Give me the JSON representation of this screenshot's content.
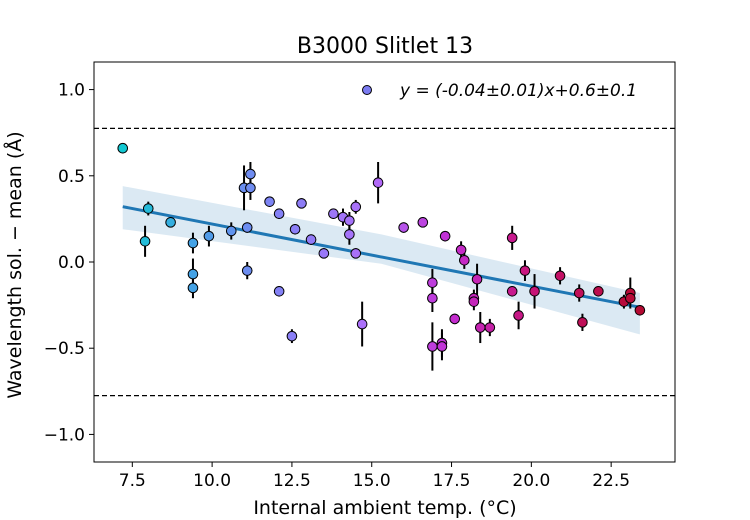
{
  "chart_data": {
    "type": "scatter",
    "title": "B3000 Slitlet 13",
    "xlabel": "Internal ambient temp. (°C)",
    "ylabel": "Wavelength sol. − mean (Å)",
    "xlim": [
      6.3,
      24.5
    ],
    "ylim": [
      -1.16,
      1.16
    ],
    "xticks": [
      7.5,
      10.0,
      12.5,
      15.0,
      17.5,
      20.0,
      22.5
    ],
    "xtick_labels": [
      "7.5",
      "10.0",
      "12.5",
      "15.0",
      "17.5",
      "20.0",
      "22.5"
    ],
    "yticks": [
      -1.0,
      -0.5,
      0.0,
      0.5,
      1.0
    ],
    "ytick_labels": [
      "−1.0",
      "−0.5",
      "0.0",
      "0.5",
      "1.0"
    ],
    "legend": {
      "label": "y = (-0.04±0.01)x+0.6±0.1",
      "position": "top-right",
      "marker_color": "#7b7bf0"
    },
    "reference_lines": [
      0.775,
      -0.775
    ],
    "fit": {
      "slope": -0.036,
      "intercept": 0.58,
      "x_range": [
        7.2,
        23.4
      ],
      "band": [
        [
          7.2,
          0.19,
          0.44
        ],
        [
          15.3,
          -0.01,
          0.16
        ],
        [
          23.4,
          -0.42,
          -0.18
        ]
      ],
      "color": "#1f77b4"
    },
    "points": [
      {
        "x": 7.2,
        "y": 0.66,
        "err": 0.03
      },
      {
        "x": 7.9,
        "y": 0.12,
        "err": 0.09
      },
      {
        "x": 8.0,
        "y": 0.31,
        "err": 0.04
      },
      {
        "x": 8.7,
        "y": 0.23,
        "err": 0.03
      },
      {
        "x": 9.4,
        "y": 0.11,
        "err": 0.06
      },
      {
        "x": 9.4,
        "y": -0.07,
        "err": 0.09
      },
      {
        "x": 9.4,
        "y": -0.15,
        "err": 0.06
      },
      {
        "x": 9.9,
        "y": 0.15,
        "err": 0.06
      },
      {
        "x": 10.6,
        "y": 0.18,
        "err": 0.05
      },
      {
        "x": 11.0,
        "y": 0.43,
        "err": 0.13
      },
      {
        "x": 11.1,
        "y": 0.2,
        "err": 0.03
      },
      {
        "x": 11.1,
        "y": -0.05,
        "err": 0.05
      },
      {
        "x": 11.2,
        "y": 0.51,
        "err": 0.07
      },
      {
        "x": 11.2,
        "y": 0.43,
        "err": 0.07
      },
      {
        "x": 11.8,
        "y": 0.35,
        "err": 0.03
      },
      {
        "x": 12.1,
        "y": 0.28,
        "err": 0.03
      },
      {
        "x": 12.1,
        "y": -0.17,
        "err": 0.03
      },
      {
        "x": 12.5,
        "y": -0.43,
        "err": 0.04
      },
      {
        "x": 12.6,
        "y": 0.19,
        "err": 0.03
      },
      {
        "x": 12.8,
        "y": 0.34,
        "err": 0.03
      },
      {
        "x": 13.1,
        "y": 0.13,
        "err": 0.03
      },
      {
        "x": 13.5,
        "y": 0.05,
        "err": 0.03
      },
      {
        "x": 13.8,
        "y": 0.28,
        "err": 0.03
      },
      {
        "x": 14.1,
        "y": 0.26,
        "err": 0.05
      },
      {
        "x": 14.3,
        "y": 0.24,
        "err": 0.05
      },
      {
        "x": 14.3,
        "y": 0.16,
        "err": 0.06
      },
      {
        "x": 14.5,
        "y": 0.32,
        "err": 0.04
      },
      {
        "x": 14.5,
        "y": 0.05,
        "err": 0.03
      },
      {
        "x": 14.7,
        "y": -0.36,
        "err": 0.13
      },
      {
        "x": 15.2,
        "y": 0.46,
        "err": 0.12
      },
      {
        "x": 16.0,
        "y": 0.2,
        "err": 0.03
      },
      {
        "x": 16.6,
        "y": 0.23,
        "err": 0.03
      },
      {
        "x": 16.9,
        "y": -0.12,
        "err": 0.08
      },
      {
        "x": 16.9,
        "y": -0.21,
        "err": 0.08
      },
      {
        "x": 16.9,
        "y": -0.49,
        "err": 0.14
      },
      {
        "x": 17.2,
        "y": -0.47,
        "err": 0.08
      },
      {
        "x": 17.2,
        "y": -0.49,
        "err": 0.08
      },
      {
        "x": 17.3,
        "y": 0.15,
        "err": 0.03
      },
      {
        "x": 17.6,
        "y": -0.33,
        "err": 0.03
      },
      {
        "x": 17.8,
        "y": 0.07,
        "err": 0.05
      },
      {
        "x": 17.9,
        "y": 0.01,
        "err": 0.05
      },
      {
        "x": 18.2,
        "y": -0.21,
        "err": 0.05
      },
      {
        "x": 18.2,
        "y": -0.23,
        "err": 0.05
      },
      {
        "x": 18.3,
        "y": -0.1,
        "err": 0.09
      },
      {
        "x": 18.4,
        "y": -0.38,
        "err": 0.09
      },
      {
        "x": 18.7,
        "y": -0.38,
        "err": 0.05
      },
      {
        "x": 19.4,
        "y": 0.14,
        "err": 0.07
      },
      {
        "x": 19.4,
        "y": -0.17,
        "err": 0.03
      },
      {
        "x": 19.6,
        "y": -0.31,
        "err": 0.08
      },
      {
        "x": 19.8,
        "y": -0.05,
        "err": 0.06
      },
      {
        "x": 20.1,
        "y": -0.17,
        "err": 0.1
      },
      {
        "x": 20.9,
        "y": -0.08,
        "err": 0.05
      },
      {
        "x": 21.5,
        "y": -0.18,
        "err": 0.05
      },
      {
        "x": 21.6,
        "y": -0.35,
        "err": 0.05
      },
      {
        "x": 22.1,
        "y": -0.17,
        "err": 0.03
      },
      {
        "x": 22.9,
        "y": -0.23,
        "err": 0.04
      },
      {
        "x": 23.1,
        "y": -0.18,
        "err": 0.09
      },
      {
        "x": 23.1,
        "y": -0.21,
        "err": 0.03
      },
      {
        "x": 23.4,
        "y": -0.28,
        "err": 0.03
      }
    ]
  }
}
